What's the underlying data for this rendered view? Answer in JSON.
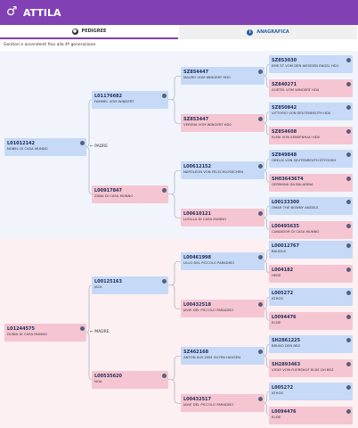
{
  "header": {
    "title": "ATTILA"
  },
  "tabs": [
    "PEDIGREE",
    "ANAGRAFICA"
  ],
  "subtitle": "Genitori e ascendenti fino alla 4ª generazione",
  "parent_labels": [
    "PADRE",
    "MADRE"
  ],
  "generations": [
    [
      {
        "code": "L01012142",
        "name": "NOBEL DI CASA MUNNO"
      },
      {
        "code": "L01244575",
        "name": "DUNIA DI CASA MUNNO"
      }
    ],
    [
      {
        "code": "L01176682",
        "name": "FAMMEL VOM WINGERT"
      },
      {
        "code": "L00917847",
        "name": "ZANA DI CASA MUNNO"
      },
      {
        "code": "L00125163",
        "name": "JACK"
      },
      {
        "code": "L00535620",
        "name": "NOA"
      }
    ],
    [
      {
        "code": "SZ854447",
        "name": "MAURO VOM WINGERT HD0"
      },
      {
        "code": "SZ853447",
        "name": "VERENA VOM WINGERT HD0"
      },
      {
        "code": "L00612152",
        "name": "NAPOLEON VON FELSCHLOSSCHEN"
      },
      {
        "code": "L00610121",
        "name": "LUCILLA DI CASA MUNNO"
      },
      {
        "code": "L00461998",
        "name": "LILLO DEL PICCOLO PARADISO"
      },
      {
        "code": "L00432518",
        "name": "JAVIE DEL PICCOLO PARADISO"
      },
      {
        "code": "SZ462168",
        "name": "ANTON AUS DEM GUTEN HAUSEN"
      },
      {
        "code": "L00432517",
        "name": "JAVIE DEL PICCOLO PARADISO"
      }
    ],
    [
      {
        "code": "SZ853030",
        "name": "EMS ST VOM DEN WEISSEN ENGEL HD1"
      },
      {
        "code": "SZ840271",
        "name": "GUSTEL VOM WINGERT HD0"
      },
      {
        "code": "SZ850842",
        "name": "VITTORIO VON SEUTENREUTH HD0"
      },
      {
        "code": "SZ854608",
        "name": "ELMA VON SENSENHAU HD0"
      },
      {
        "code": "SZ849848",
        "name": "OBELIX VON SEUTENREUTH STYGOSH"
      },
      {
        "code": "SH03643674",
        "name": "GERMANA DA BALADINA"
      },
      {
        "code": "L00133300",
        "name": "OMAR THE BOWNY ANGELS"
      },
      {
        "code": "L00495635",
        "name": "CANDIDOR DI CASA MUNNO"
      },
      {
        "code": "L00012767",
        "name": "BAUDUX"
      },
      {
        "code": "L004182",
        "name": "HEIDI"
      },
      {
        "code": "L005272",
        "name": "ATHOS"
      },
      {
        "code": "L0094476",
        "name": "ELSIE"
      },
      {
        "code": "SH2861225",
        "name": "BRUNO DEN BEZ"
      },
      {
        "code": "SH2893463",
        "name": "VICKY VOM FUERSHOF ELDE DH BEZ"
      },
      {
        "code": "L005272",
        "name": "ATHOS"
      },
      {
        "code": "L0094476",
        "name": "ELSIE"
      }
    ]
  ]
}
